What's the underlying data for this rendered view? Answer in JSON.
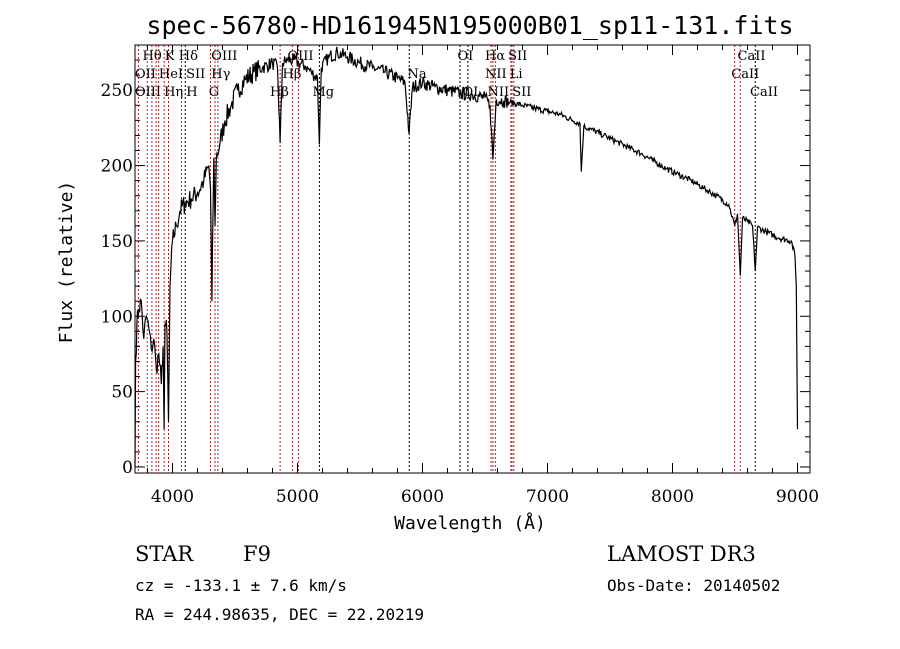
{
  "chart_data": {
    "type": "line",
    "title": "spec-56780-HD161945N195000B01_sp11-131.fits",
    "xlabel": "Wavelength (Å)",
    "ylabel": "Flux (relative)",
    "xlim": [
      3700,
      9100
    ],
    "ylim": [
      -4,
      280
    ],
    "xticks": [
      4000,
      5000,
      6000,
      7000,
      8000,
      9000
    ],
    "yticks": [
      0,
      50,
      100,
      150,
      200,
      250
    ],
    "series": [
      {
        "name": "spectrum",
        "x": [
          3700,
          3705,
          3715,
          3730,
          3750,
          3770,
          3790,
          3810,
          3830,
          3850,
          3870,
          3890,
          3910,
          3925,
          3933,
          3940,
          3955,
          3968,
          3980,
          4000,
          4030,
          4060,
          4100,
          4150,
          4200,
          4250,
          4290,
          4304,
          4315,
          4330,
          4340,
          4350,
          4380,
          4420,
          4470,
          4520,
          4580,
          4650,
          4720,
          4800,
          4840,
          4861,
          4880,
          4920,
          4970,
          5010,
          5060,
          5110,
          5160,
          5175,
          5190,
          5250,
          5320,
          5400,
          5500,
          5600,
          5700,
          5800,
          5860,
          5893,
          5920,
          6000,
          6100,
          6200,
          6300,
          6400,
          6500,
          6540,
          6563,
          6590,
          6650,
          6700,
          6800,
          6900,
          7000,
          7100,
          7200,
          7260,
          7270,
          7290,
          7350,
          7450,
          7550,
          7650,
          7750,
          7850,
          7950,
          8050,
          8150,
          8250,
          8350,
          8450,
          8498,
          8520,
          8542,
          8560,
          8600,
          8640,
          8662,
          8680,
          8750,
          8850,
          8950,
          8980,
          8990,
          9000
        ],
        "y": [
          0,
          70,
          95,
          105,
          110,
          85,
          100,
          92,
          78,
          85,
          65,
          75,
          55,
          80,
          25,
          95,
          90,
          30,
          120,
          150,
          160,
          170,
          175,
          178,
          182,
          190,
          200,
          185,
          110,
          205,
          160,
          205,
          215,
          230,
          240,
          250,
          257,
          262,
          265,
          268,
          265,
          215,
          268,
          270,
          270,
          268,
          266,
          262,
          258,
          214,
          265,
          272,
          275,
          272,
          268,
          265,
          262,
          258,
          255,
          221,
          252,
          255,
          252,
          250,
          248,
          247,
          245,
          240,
          204,
          244,
          243,
          242,
          240,
          238,
          236,
          234,
          230,
          228,
          196,
          226,
          224,
          220,
          216,
          212,
          208,
          203,
          198,
          194,
          190,
          185,
          180,
          174,
          160,
          168,
          127,
          165,
          163,
          160,
          130,
          159,
          156,
          152,
          150,
          140,
          120,
          25
        ]
      }
    ],
    "lines": [
      {
        "w": 3727,
        "color": "#b22222"
      },
      {
        "w": 3798,
        "color": "#b22222"
      },
      {
        "w": 3835,
        "color": "#b22222"
      },
      {
        "w": 3869,
        "color": "#b22222"
      },
      {
        "w": 3889,
        "color": "#b22222"
      },
      {
        "w": 3933,
        "color": "#b22222"
      },
      {
        "w": 3968,
        "color": "#b22222"
      },
      {
        "w": 4072,
        "color": "#b22222"
      },
      {
        "w": 4102,
        "color": "#000000"
      },
      {
        "w": 4304,
        "color": "#b22222"
      },
      {
        "w": 4340,
        "color": "#b22222"
      },
      {
        "w": 4363,
        "color": "#b22222"
      },
      {
        "w": 4861,
        "color": "#b22222"
      },
      {
        "w": 4959,
        "color": "#b22222"
      },
      {
        "w": 5007,
        "color": "#b22222"
      },
      {
        "w": 5175,
        "color": "#000000"
      },
      {
        "w": 5894,
        "color": "#000000"
      },
      {
        "w": 6300,
        "color": "#000000"
      },
      {
        "w": 6363,
        "color": "#000000"
      },
      {
        "w": 6548,
        "color": "#b22222"
      },
      {
        "w": 6563,
        "color": "#b22222"
      },
      {
        "w": 6583,
        "color": "#b22222"
      },
      {
        "w": 6707,
        "color": "#b22222"
      },
      {
        "w": 6716,
        "color": "#b22222"
      },
      {
        "w": 6731,
        "color": "#b22222"
      },
      {
        "w": 8498,
        "color": "#b22222"
      },
      {
        "w": 8542,
        "color": "#b22222"
      },
      {
        "w": 8662,
        "color": "#000000"
      }
    ],
    "line_labels": [
      {
        "text": "Hθ",
        "w": 3760,
        "row": 1
      },
      {
        "text": "K",
        "w": 3920,
        "row": 1
      },
      {
        "text": "Hδ",
        "w": 4050,
        "row": 1
      },
      {
        "text": "OIII",
        "w": 4310,
        "row": 1
      },
      {
        "text": "OIII",
        "w": 4920,
        "row": 1
      },
      {
        "text": "OI",
        "w": 6280,
        "row": 1
      },
      {
        "text": "Hα",
        "w": 6500,
        "row": 1
      },
      {
        "text": "SII",
        "w": 6660,
        "row": 1
      },
      {
        "text": "CaII",
        "w": 8520,
        "row": 1
      },
      {
        "text": "OII",
        "w": 3700,
        "row": 2
      },
      {
        "text": "HeI",
        "w": 3820,
        "row": 2
      },
      {
        "text": "SII",
        "w": 4010,
        "row": 2
      },
      {
        "text": "Hγ",
        "w": 4310,
        "row": 2
      },
      {
        "text": "Hβ",
        "w": 4880,
        "row": 2
      },
      {
        "text": "Na",
        "w": 5880,
        "row": 2
      },
      {
        "text": "NII",
        "w": 6500,
        "row": 2
      },
      {
        "text": "Li",
        "w": 6680,
        "row": 2
      },
      {
        "text": "CaII",
        "w": 8470,
        "row": 2
      },
      {
        "text": "OIII",
        "w": 3700,
        "row": 3
      },
      {
        "text": "Hη",
        "w": 3830,
        "row": 3
      },
      {
        "text": "H",
        "w": 3955,
        "row": 3
      },
      {
        "text": "G",
        "w": 4290,
        "row": 3
      },
      {
        "text": "Hβ",
        "w": 4780,
        "row": 3
      },
      {
        "text": "Mg",
        "w": 5120,
        "row": 3
      },
      {
        "text": "OI",
        "w": 6320,
        "row": 3
      },
      {
        "text": "NII",
        "w": 6520,
        "row": 3
      },
      {
        "text": "SII",
        "w": 6660,
        "row": 3
      },
      {
        "text": "CaII",
        "w": 8620,
        "row": 3
      }
    ]
  },
  "footer": {
    "object_type": "STAR",
    "subclass": "F9",
    "survey": "LAMOST DR3",
    "cz": "cz = -133.1 ± 7.6 km/s",
    "obs_date": "Obs-Date: 20140502",
    "coords": "RA = 244.98635, DEC =  22.20219"
  }
}
